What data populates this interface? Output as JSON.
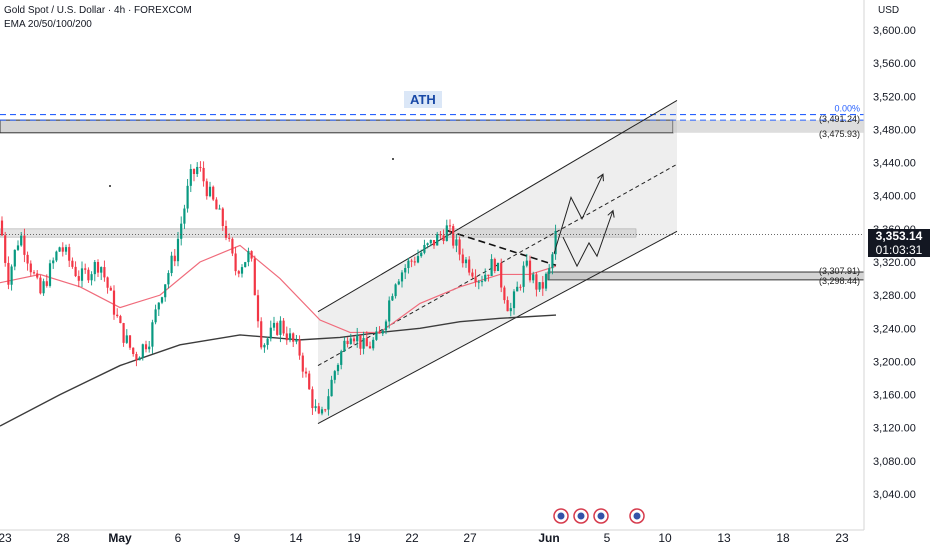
{
  "header": {
    "symbol": "Gold Spot / U.S. Dollar · 4h · FOREXCOM",
    "indicator": "EMA 20/50/100/200"
  },
  "currency": "USD",
  "last_price": "3,353.14",
  "countdown": "01:03:31",
  "annotations": {
    "ath": "ATH",
    "pct_label": "0.00%",
    "level_3491": "(3,491.24)",
    "level_3475": "(3,475.93)",
    "level_3307": "(3,307.91)",
    "level_3298": "(3,298.44)"
  },
  "colors": {
    "up": "#089981",
    "down": "#f23645",
    "ema_fast": "#f06b7b",
    "ema_slow": "#3c3c3c",
    "dashed_ath": "#2962ff",
    "zone": "#c9c9c9"
  },
  "chart_data": {
    "type": "candlestick",
    "title": "Gold Spot / U.S. Dollar · 4h · FOREXCOM",
    "y_range": [
      3020,
      3620
    ],
    "y_ticks": [
      "3,040.00",
      "3,080.00",
      "3,120.00",
      "3,160.00",
      "3,200.00",
      "3,240.00",
      "3,280.00",
      "3,320.00",
      "3,360.00",
      "3,400.00",
      "3,440.00",
      "3,480.00",
      "3,520.00",
      "3,560.00",
      "3,600.00"
    ],
    "x_ticks": [
      "23",
      "28",
      "May",
      "6",
      "9",
      "14",
      "19",
      "22",
      "27",
      "Jun",
      "5",
      "10",
      "13",
      "18",
      "23"
    ],
    "bold_x_ticks": [
      "May",
      "Jun"
    ],
    "price_path": [
      [
        0,
        3370
      ],
      [
        8,
        3300
      ],
      [
        20,
        3355
      ],
      [
        40,
        3280
      ],
      [
        60,
        3340
      ],
      [
        80,
        3300
      ],
      [
        100,
        3320
      ],
      [
        120,
        3240
      ],
      [
        135,
        3205
      ],
      [
        150,
        3230
      ],
      [
        160,
        3280
      ],
      [
        175,
        3330
      ],
      [
        190,
        3420
      ],
      [
        198,
        3435
      ],
      [
        210,
        3400
      ],
      [
        225,
        3360
      ],
      [
        235,
        3310
      ],
      [
        250,
        3330
      ],
      [
        262,
        3220
      ],
      [
        280,
        3245
      ],
      [
        300,
        3210
      ],
      [
        310,
        3160
      ],
      [
        320,
        3125
      ],
      [
        335,
        3190
      ],
      [
        350,
        3240
      ],
      [
        365,
        3215
      ],
      [
        380,
        3230
      ],
      [
        395,
        3300
      ],
      [
        410,
        3320
      ],
      [
        430,
        3340
      ],
      [
        447,
        3360
      ],
      [
        460,
        3330
      ],
      [
        480,
        3300
      ],
      [
        495,
        3320
      ],
      [
        510,
        3260
      ],
      [
        525,
        3315
      ],
      [
        540,
        3285
      ],
      [
        550,
        3310
      ],
      [
        556,
        3355
      ]
    ],
    "ema_fast": [
      [
        0,
        3295
      ],
      [
        40,
        3305
      ],
      [
        80,
        3290
      ],
      [
        120,
        3265
      ],
      [
        160,
        3280
      ],
      [
        200,
        3320
      ],
      [
        240,
        3340
      ],
      [
        280,
        3300
      ],
      [
        320,
        3250
      ],
      [
        350,
        3235
      ],
      [
        380,
        3235
      ],
      [
        420,
        3270
      ],
      [
        460,
        3290
      ],
      [
        500,
        3305
      ],
      [
        530,
        3305
      ],
      [
        556,
        3315
      ]
    ],
    "ema_slow": [
      [
        0,
        3122
      ],
      [
        60,
        3160
      ],
      [
        120,
        3195
      ],
      [
        180,
        3220
      ],
      [
        240,
        3232
      ],
      [
        300,
        3226
      ],
      [
        340,
        3229
      ],
      [
        380,
        3235
      ],
      [
        420,
        3240
      ],
      [
        460,
        3248
      ],
      [
        500,
        3252
      ],
      [
        556,
        3256
      ]
    ],
    "ath_levels": [
      3491.24,
      3498
    ],
    "resistance_zone": [
      3475.93,
      3491.24
    ],
    "mid_zone": [
      3350,
      3360
    ],
    "support_zone": [
      3298.44,
      3307.91
    ],
    "channel": {
      "lower": [
        [
          318,
          3125
        ],
        [
          677,
          3357
        ]
      ],
      "upper": [
        [
          318,
          3260
        ],
        [
          677,
          3515
        ]
      ],
      "mid": [
        [
          318,
          3195
        ],
        [
          677,
          3438
        ]
      ]
    },
    "projection_paths": [
      [
        [
          554,
          3330
        ],
        [
          571,
          3398
        ],
        [
          582,
          3372
        ],
        [
          603,
          3426
        ]
      ],
      [
        [
          563,
          3350
        ],
        [
          577,
          3315
        ],
        [
          589,
          3343
        ],
        [
          597,
          3327
        ],
        [
          613,
          3382
        ]
      ]
    ]
  }
}
